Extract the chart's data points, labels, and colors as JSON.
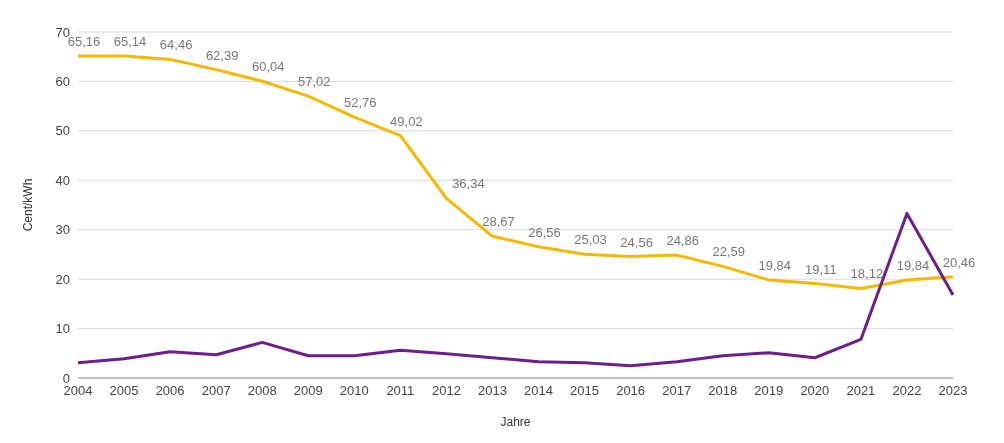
{
  "chart_data": {
    "type": "line",
    "xlabel": "Jahre",
    "ylabel": "Cent/kWh",
    "categories": [
      "2004",
      "2005",
      "2006",
      "2007",
      "2008",
      "2009",
      "2010",
      "2011",
      "2012",
      "2013",
      "2014",
      "2015",
      "2016",
      "2017",
      "2018",
      "2019",
      "2020",
      "2021",
      "2022",
      "2023"
    ],
    "series": [
      {
        "color": "#f5b800",
        "values": [
          65.16,
          65.14,
          64.46,
          62.39,
          60.04,
          57.02,
          52.76,
          49.02,
          36.34,
          28.67,
          26.56,
          25.03,
          24.56,
          24.86,
          22.59,
          19.84,
          19.11,
          18.12,
          19.84,
          20.46
        ],
        "value_labels": [
          "65,16",
          "65,14",
          "64,46",
          "62,39",
          "60,04",
          "57,02",
          "52,76",
          "49,02",
          "36,34",
          "28,67",
          "26,56",
          "25,03",
          "24,56",
          "24,86",
          "22,59",
          "19,84",
          "19,11",
          "18,12",
          "19,84",
          "20,46"
        ]
      },
      {
        "color": "#6a1f8a",
        "values": [
          3.1,
          3.9,
          5.3,
          4.7,
          7.2,
          4.5,
          4.5,
          5.6,
          4.9,
          4.1,
          3.3,
          3.1,
          2.5,
          3.3,
          4.5,
          5.1,
          4.1,
          7.8,
          33.3,
          16.8
        ]
      }
    ],
    "ylim": [
      0,
      70
    ],
    "yticks": [
      0,
      10,
      20,
      30,
      40,
      50,
      60,
      70
    ],
    "grid": "y",
    "marker": "none",
    "line_style": "solid"
  }
}
